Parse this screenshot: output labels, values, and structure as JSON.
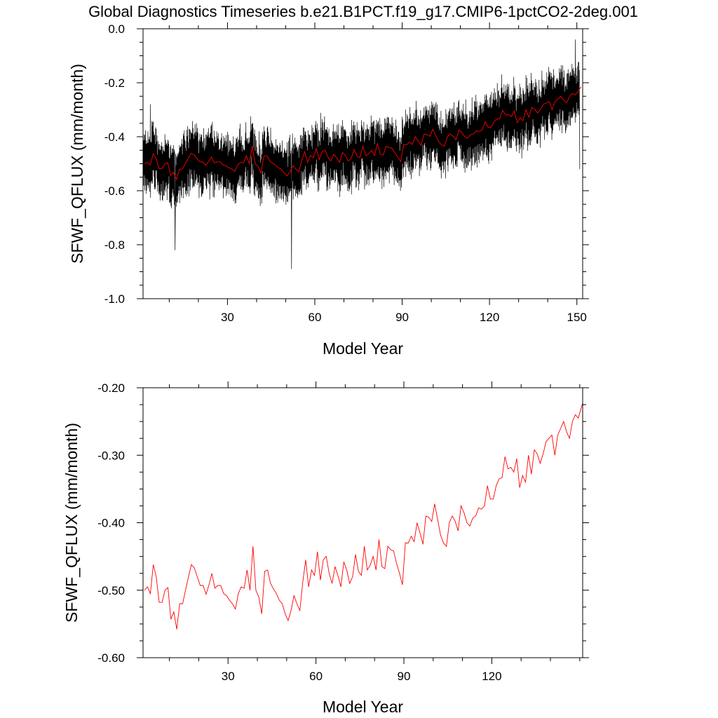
{
  "figure": {
    "title": "Global Diagnostics Timeseries b.e21.B1PCT.f19_g17.CMIP6-1pctCO2-2deg.001"
  },
  "chart_data": [
    {
      "type": "line",
      "title": "",
      "xlabel": "Model Year",
      "ylabel": "SFWF_QFLUX (mm/month)",
      "xlim": [
        1,
        152
      ],
      "ylim": [
        -1.0,
        0.0
      ],
      "grid": false,
      "x_ticks": [
        30,
        60,
        90,
        120,
        150
      ],
      "x_tick_labels": [
        "30",
        "60",
        "90",
        "120",
        "150"
      ],
      "y_ticks": [
        -1.0,
        -0.8,
        -0.6,
        -0.4,
        -0.2,
        0.0
      ],
      "y_tick_labels": [
        "-1.0",
        "-0.8",
        "-0.6",
        "-0.4",
        "-0.2",
        "0.0"
      ],
      "series": [
        {
          "name": "",
          "color": "#000000",
          "resolution": "monthly",
          "x_start": 1,
          "x_end": 151,
          "noise_amplitude": 0.1,
          "extremes": [
            {
              "x": 3.5,
              "y": -0.28
            },
            {
              "x": 12,
              "y": -0.82
            },
            {
              "x": 52,
              "y": -0.89
            },
            {
              "x": 149.5,
              "y": -0.04
            },
            {
              "x": 151,
              "y": -0.52
            }
          ]
        },
        {
          "name": "",
          "color": "#ff0000",
          "resolution": "annual",
          "ref": "annual_mean"
        }
      ]
    },
    {
      "type": "line",
      "title": "",
      "xlabel": "Model Year",
      "ylabel": "SFWF_QFLUX (mm/month)",
      "xlim": [
        1,
        151
      ],
      "ylim": [
        -0.6,
        -0.2
      ],
      "grid": false,
      "x_ticks": [
        30,
        60,
        90,
        120
      ],
      "x_tick_labels": [
        "30",
        "60",
        "90",
        "120"
      ],
      "y_ticks": [
        -0.6,
        -0.5,
        -0.4,
        -0.3,
        -0.2
      ],
      "y_tick_labels": [
        "-0.60",
        "-0.50",
        "-0.40",
        "-0.30",
        "-0.20"
      ],
      "series": [
        {
          "name": "",
          "color": "#ff0000",
          "resolution": "annual",
          "ref": "annual_mean"
        }
      ]
    }
  ],
  "annual_mean": {
    "x_start": 1,
    "values": [
      -0.5,
      -0.495,
      -0.505,
      -0.462,
      -0.48,
      -0.518,
      -0.518,
      -0.5,
      -0.496,
      -0.543,
      -0.532,
      -0.558,
      -0.52,
      -0.52,
      -0.5,
      -0.48,
      -0.462,
      -0.467,
      -0.48,
      -0.493,
      -0.493,
      -0.506,
      -0.492,
      -0.475,
      -0.497,
      -0.493,
      -0.493,
      -0.505,
      -0.508,
      -0.515,
      -0.52,
      -0.528,
      -0.505,
      -0.495,
      -0.497,
      -0.47,
      -0.5,
      -0.435,
      -0.5,
      -0.51,
      -0.535,
      -0.472,
      -0.47,
      -0.49,
      -0.498,
      -0.505,
      -0.515,
      -0.52,
      -0.535,
      -0.545,
      -0.53,
      -0.508,
      -0.52,
      -0.53,
      -0.488,
      -0.455,
      -0.495,
      -0.47,
      -0.478,
      -0.443,
      -0.485,
      -0.455,
      -0.45,
      -0.475,
      -0.49,
      -0.465,
      -0.478,
      -0.495,
      -0.458,
      -0.47,
      -0.49,
      -0.48,
      -0.447,
      -0.472,
      -0.478,
      -0.435,
      -0.47,
      -0.463,
      -0.45,
      -0.47,
      -0.425,
      -0.465,
      -0.468,
      -0.435,
      -0.44,
      -0.442,
      -0.46,
      -0.475,
      -0.492,
      -0.43,
      -0.43,
      -0.42,
      -0.428,
      -0.4,
      -0.415,
      -0.432,
      -0.39,
      -0.392,
      -0.398,
      -0.372,
      -0.395,
      -0.418,
      -0.43,
      -0.435,
      -0.4,
      -0.39,
      -0.398,
      -0.412,
      -0.375,
      -0.385,
      -0.4,
      -0.405,
      -0.393,
      -0.39,
      -0.378,
      -0.38,
      -0.375,
      -0.345,
      -0.365,
      -0.365,
      -0.345,
      -0.335,
      -0.333,
      -0.302,
      -0.32,
      -0.318,
      -0.325,
      -0.305,
      -0.348,
      -0.33,
      -0.34,
      -0.3,
      -0.328,
      -0.292,
      -0.298,
      -0.312,
      -0.298,
      -0.28,
      -0.275,
      -0.27,
      -0.3,
      -0.27,
      -0.26,
      -0.25,
      -0.265,
      -0.275,
      -0.25,
      -0.24,
      -0.245,
      -0.23,
      -0.215
    ]
  }
}
